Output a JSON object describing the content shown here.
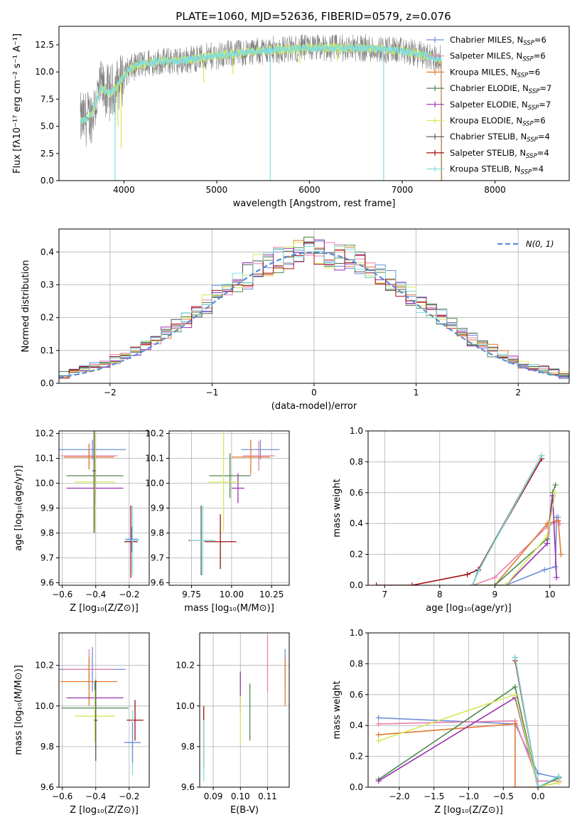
{
  "figure_title": "PLATE=1060, MJD=52636, FIBERID=0579, z=0.076",
  "colors": {
    "chabrier_miles": "#6f8fd8",
    "salpeter_miles": "#e87faf",
    "kroupa_miles": "#e07a2f",
    "chabrier_elodie": "#4f8a4f",
    "salpeter_elodie": "#9a30b0",
    "kroupa_elodie": "#d6e85a",
    "chabrier_stelib": "#555555",
    "salpeter_stelib": "#a01010",
    "kroupa_stelib": "#80dde0",
    "normal_curve": "#5b8ad6",
    "gray_spectrum": "#808080"
  },
  "chart_data": [
    {
      "id": "spectrum",
      "type": "line",
      "xlabel": "wavelength [Angstrom, rest frame]",
      "ylabel": "Flux [fλ10⁻¹⁷ erg cm⁻² s⁻¹ A⁻¹]",
      "xlim": [
        3300,
        8800
      ],
      "ylim": [
        0,
        14.2
      ],
      "xticks": [
        "4000",
        "5000",
        "6000",
        "7000",
        "8000"
      ],
      "yticks": [
        "0.0",
        "2.5",
        "5.0",
        "7.5",
        "10.0",
        "12.5"
      ],
      "grid": false,
      "legend_position": "top-right",
      "legend": [
        {
          "name": "Chabrier MILES, N",
          "sub": "SSP",
          "val": "=6",
          "color": "chabrier_miles"
        },
        {
          "name": "Salpeter MILES, N",
          "sub": "SSP",
          "val": "=6",
          "color": "salpeter_miles"
        },
        {
          "name": "Kroupa MILES, N",
          "sub": "SSP",
          "val": "=6",
          "color": "kroupa_miles"
        },
        {
          "name": "Chabrier ELODIE, N",
          "sub": "SSP",
          "val": "=7",
          "color": "chabrier_elodie"
        },
        {
          "name": "Salpeter ELODIE, N",
          "sub": "SSP",
          "val": "=7",
          "color": "salpeter_elodie"
        },
        {
          "name": "Kroupa ELODIE, N",
          "sub": "SSP",
          "val": "=6",
          "color": "kroupa_elodie"
        },
        {
          "name": "Chabrier STELIB, N",
          "sub": "SSP",
          "val": "=4",
          "color": "chabrier_stelib"
        },
        {
          "name": "Salpeter STELIB, N",
          "sub": "SSP",
          "val": "=4",
          "color": "salpeter_stelib"
        },
        {
          "name": "Kroupa STELIB, N",
          "sub": "SSP",
          "val": "=4",
          "color": "kroupa_stelib"
        }
      ],
      "continuum": [
        [
          3550,
          5.5
        ],
        [
          3650,
          6.0
        ],
        [
          3750,
          8.5
        ],
        [
          3850,
          8.0
        ],
        [
          3950,
          9.0
        ],
        [
          4050,
          10.2
        ],
        [
          4200,
          10.8
        ],
        [
          4400,
          11.0
        ],
        [
          4600,
          11.0
        ],
        [
          4800,
          11.3
        ],
        [
          5000,
          11.5
        ],
        [
          5200,
          11.7
        ],
        [
          5400,
          11.9
        ],
        [
          5600,
          12.0
        ],
        [
          5800,
          12.1
        ],
        [
          6000,
          12.2
        ],
        [
          6200,
          12.2
        ],
        [
          6400,
          12.2
        ],
        [
          6600,
          12.2
        ],
        [
          6800,
          12.1
        ],
        [
          7000,
          11.9
        ],
        [
          7200,
          11.6
        ],
        [
          7400,
          11.2
        ]
      ],
      "dips": [
        [
          3905,
          0.0
        ],
        [
          3935,
          5.0
        ],
        [
          3970,
          3.0
        ],
        [
          4860,
          9.0
        ],
        [
          5175,
          9.8
        ],
        [
          5577,
          0.0
        ],
        [
          5895,
          10.8
        ],
        [
          6300,
          11.0
        ],
        [
          6800,
          0.0
        ],
        [
          7420,
          0.0
        ]
      ]
    },
    {
      "id": "residuals",
      "type": "bar",
      "xlabel": "(data-model)/error",
      "ylabel": "Normed distribution",
      "xlim": [
        -2.5,
        2.5
      ],
      "ylim": [
        0,
        0.47
      ],
      "xticks": [
        "−2",
        "−1",
        "0",
        "1",
        "2"
      ],
      "yticks": [
        "0.0",
        "0.1",
        "0.2",
        "0.3",
        "0.4"
      ],
      "grid": true,
      "legend_position": "top-right",
      "legend": [
        {
          "name": "N(0, 1)",
          "color": "normal_curve"
        }
      ],
      "bin_width": 0.1,
      "series_count": 9
    },
    {
      "id": "age_vs_Z",
      "type": "scatter",
      "xlabel": "Z [log₁₀(Z/Z⊙)]",
      "ylabel": "age  [log₁₀(age/yr)]",
      "xlim": [
        -0.62,
        -0.08
      ],
      "ylim": [
        9.59,
        10.21
      ],
      "xticks": [
        "−0.6",
        "−0.4",
        "−0.2"
      ],
      "yticks": [
        "9.6",
        "9.7",
        "9.8",
        "9.9",
        "10.0",
        "10.1",
        "10.2"
      ],
      "grid": true,
      "points": [
        {
          "x": -0.42,
          "y": 10.135,
          "xe": 0.2,
          "ye": 0.04,
          "color": "chabrier_miles"
        },
        {
          "x": -0.44,
          "y": 10.11,
          "xe": 0.17,
          "ye": 0.05,
          "color": "salpeter_miles"
        },
        {
          "x": -0.44,
          "y": 10.105,
          "xe": 0.15,
          "ye": 0.05,
          "color": "kroupa_miles"
        },
        {
          "x": -0.405,
          "y": 10.03,
          "xe": 0.17,
          "ye": 0.08,
          "color": "chabrier_elodie"
        },
        {
          "x": -0.405,
          "y": 9.98,
          "xe": 0.17,
          "ye": 0.06,
          "color": "salpeter_elodie"
        },
        {
          "x": -0.405,
          "y": 10.005,
          "xe": 0.12,
          "ye": 0.2,
          "color": "kroupa_elodie"
        },
        {
          "x": -0.41,
          "y": 10.05,
          "xe": 0.01,
          "ye": 0.25,
          "color": "chabrier_stelib"
        },
        {
          "x": -0.19,
          "y": 9.765,
          "xe": 0.04,
          "ye": 0.145,
          "color": "salpeter_stelib"
        },
        {
          "x": -0.18,
          "y": 9.77,
          "xe": 0.04,
          "ye": 0.14,
          "color": "kroupa_stelib"
        },
        {
          "x": -0.185,
          "y": 9.775,
          "xe": 0.04,
          "ye": 0.05,
          "color": "chabrier_miles"
        }
      ]
    },
    {
      "id": "age_vs_mass",
      "type": "scatter",
      "xlabel": "mass [log₁₀(M/M⊙)]",
      "ylabel": "",
      "xlim": [
        9.61,
        10.36
      ],
      "ylim": [
        9.59,
        10.21
      ],
      "xticks": [
        "9.75",
        "10.00",
        "10.25"
      ],
      "yticks": [
        "9.6",
        "9.7",
        "9.8",
        "9.9",
        "10.0",
        "10.1",
        "10.2"
      ],
      "grid": true,
      "points": [
        {
          "x": 10.18,
          "y": 10.135,
          "xe": 0.12,
          "ye": 0.04,
          "color": "chabrier_miles"
        },
        {
          "x": 10.17,
          "y": 10.11,
          "xe": 0.1,
          "ye": 0.06,
          "color": "salpeter_miles"
        },
        {
          "x": 10.12,
          "y": 10.105,
          "xe": 0.12,
          "ye": 0.07,
          "color": "kroupa_miles"
        },
        {
          "x": 9.99,
          "y": 10.03,
          "xe": 0.13,
          "ye": 0.09,
          "color": "chabrier_elodie"
        },
        {
          "x": 10.04,
          "y": 9.98,
          "xe": 0.04,
          "ye": 0.06,
          "color": "salpeter_elodie"
        },
        {
          "x": 9.95,
          "y": 10.005,
          "xe": 0.1,
          "ye": 0.2,
          "color": "kroupa_elodie"
        },
        {
          "x": 9.81,
          "y": 9.77,
          "xe": 0.08,
          "ye": 0.14,
          "color": "chabrier_stelib"
        },
        {
          "x": 9.93,
          "y": 9.765,
          "xe": 0.1,
          "ye": 0.11,
          "color": "salpeter_stelib"
        },
        {
          "x": 9.82,
          "y": 9.77,
          "xe": 0.08,
          "ye": 0.14,
          "color": "kroupa_stelib"
        }
      ]
    },
    {
      "id": "massweight_vs_age",
      "type": "line",
      "xlabel": "age  [log₁₀(age/yr)]",
      "ylabel": "mass weight",
      "xlim": [
        6.7,
        10.35
      ],
      "ylim": [
        0,
        1.0
      ],
      "xticks": [
        "7",
        "8",
        "9",
        "10"
      ],
      "yticks": [
        "0.0",
        "0.2",
        "0.4",
        "0.6",
        "0.8",
        "1.0"
      ],
      "grid": true,
      "series": [
        {
          "color": "chabrier_miles",
          "points": [
            [
              8.6,
              0.0
            ],
            [
              9.2,
              0.0
            ],
            [
              9.9,
              0.1
            ],
            [
              10.1,
              0.12
            ],
            [
              10.12,
              0.44
            ],
            [
              10.15,
              0.44
            ]
          ]
        },
        {
          "color": "salpeter_miles",
          "points": [
            [
              8.6,
              0.0
            ],
            [
              9.0,
              0.05
            ],
            [
              9.95,
              0.38
            ],
            [
              10.15,
              0.42
            ],
            [
              10.18,
              0.4
            ]
          ]
        },
        {
          "color": "kroupa_miles",
          "points": [
            [
              8.6,
              0.0
            ],
            [
              9.0,
              0.0
            ],
            [
              9.95,
              0.4
            ],
            [
              10.15,
              0.42
            ],
            [
              10.2,
              0.2
            ]
          ]
        },
        {
          "color": "chabrier_elodie",
          "points": [
            [
              8.6,
              0.0
            ],
            [
              9.0,
              0.0
            ],
            [
              9.95,
              0.3
            ],
            [
              10.05,
              0.6
            ],
            [
              10.1,
              0.65
            ]
          ]
        },
        {
          "color": "salpeter_elodie",
          "points": [
            [
              8.7,
              0.0
            ],
            [
              9.2,
              0.0
            ],
            [
              9.95,
              0.27
            ],
            [
              10.05,
              0.58
            ],
            [
              10.12,
              0.05
            ]
          ]
        },
        {
          "color": "kroupa_elodie",
          "points": [
            [
              8.7,
              0.0
            ],
            [
              9.2,
              0.0
            ],
            [
              9.95,
              0.32
            ],
            [
              10.1,
              0.6
            ]
          ]
        },
        {
          "color": "chabrier_stelib",
          "points": [
            [
              8.6,
              0.0
            ],
            [
              8.7,
              0.1
            ],
            [
              9.85,
              0.84
            ]
          ]
        },
        {
          "color": "salpeter_stelib",
          "points": [
            [
              6.85,
              0.0
            ],
            [
              7.5,
              0.0
            ],
            [
              8.5,
              0.07
            ],
            [
              8.7,
              0.1
            ],
            [
              9.85,
              0.82
            ]
          ]
        },
        {
          "color": "kroupa_stelib",
          "points": [
            [
              8.6,
              0.0
            ],
            [
              8.7,
              0.09
            ],
            [
              9.85,
              0.84
            ]
          ]
        }
      ]
    },
    {
      "id": "mass_vs_Z",
      "type": "scatter",
      "xlabel": "Z [log₁₀(Z/Z⊙)]",
      "ylabel": "mass [log₁₀(M/M⊙)]",
      "xlim": [
        -0.62,
        -0.08
      ],
      "ylim": [
        9.6,
        10.36
      ],
      "xticks": [
        "−0.6",
        "−0.4",
        "−0.2"
      ],
      "yticks": [
        "9.6",
        "9.8",
        "10.0",
        "10.2"
      ],
      "grid": true,
      "points": [
        {
          "x": -0.42,
          "y": 10.18,
          "xe": 0.2,
          "ye": 0.11,
          "color": "chabrier_miles"
        },
        {
          "x": -0.44,
          "y": 10.18,
          "xe": 0.15,
          "ye": 0.1,
          "color": "salpeter_miles"
        },
        {
          "x": -0.44,
          "y": 10.12,
          "xe": 0.17,
          "ye": 0.12,
          "color": "kroupa_miles"
        },
        {
          "x": -0.405,
          "y": 9.99,
          "xe": 0.2,
          "ye": 0.13,
          "color": "chabrier_elodie"
        },
        {
          "x": -0.405,
          "y": 10.04,
          "xe": 0.17,
          "ye": 0.04,
          "color": "salpeter_elodie"
        },
        {
          "x": -0.405,
          "y": 9.95,
          "xe": 0.12,
          "ye": 0.13,
          "color": "kroupa_elodie"
        },
        {
          "x": -0.4,
          "y": 9.93,
          "xe": 0.01,
          "ye": 0.2,
          "color": "chabrier_stelib"
        },
        {
          "x": -0.165,
          "y": 9.93,
          "xe": 0.05,
          "ye": 0.1,
          "color": "salpeter_stelib"
        },
        {
          "x": -0.18,
          "y": 9.82,
          "xe": 0.04,
          "ye": 0.16,
          "color": "kroupa_stelib"
        },
        {
          "x": -0.18,
          "y": 9.82,
          "xe": 0.05,
          "ye": 0.1,
          "color": "chabrier_miles"
        }
      ]
    },
    {
      "id": "mass_vs_EBV",
      "type": "scatter",
      "xlabel": "E(B-V)",
      "ylabel": "",
      "xlim": [
        0.085,
        0.118
      ],
      "ylim": [
        9.6,
        10.36
      ],
      "xticks": [
        "0.09",
        "0.10",
        "0.11"
      ],
      "yticks": [
        "9.6",
        "9.8",
        "10.0",
        "10.2"
      ],
      "grid": true,
      "points": [
        {
          "x": 0.1165,
          "y": 10.18,
          "xe": 0,
          "ye": 0.1,
          "color": "chabrier_miles"
        },
        {
          "x": 0.11,
          "y": 10.21,
          "xe": 0,
          "ye": 0.14,
          "color": "salpeter_miles"
        },
        {
          "x": 0.1165,
          "y": 10.12,
          "xe": 0,
          "ye": 0.12,
          "color": "kroupa_miles"
        },
        {
          "x": 0.1035,
          "y": 9.97,
          "xe": 0,
          "ye": 0.14,
          "color": "chabrier_elodie"
        },
        {
          "x": 0.1,
          "y": 10.07,
          "xe": 0,
          "ye": 0.1,
          "color": "salpeter_elodie"
        },
        {
          "x": 0.1,
          "y": 9.93,
          "xe": 0,
          "ye": 0.12,
          "color": "kroupa_elodie"
        },
        {
          "x": 0.0865,
          "y": 9.85,
          "xe": 0,
          "ye": 0.15,
          "color": "salpeter_stelib"
        },
        {
          "x": 0.0865,
          "y": 9.78,
          "xe": 0,
          "ye": 0.15,
          "color": "kroupa_stelib"
        }
      ]
    },
    {
      "id": "massweight_vs_Z",
      "type": "line",
      "xlabel": "Z [log₁₀(Z/Z⊙)]",
      "ylabel": "mass weight",
      "xlim": [
        -2.45,
        0.45
      ],
      "ylim": [
        0,
        1.0
      ],
      "xticks": [
        "−2.0",
        "−1.5",
        "−1.0",
        "−0.5",
        "0.0"
      ],
      "yticks": [
        "0.0",
        "0.2",
        "0.4",
        "0.6",
        "0.8",
        "1.0"
      ],
      "grid": true,
      "series": [
        {
          "color": "chabrier_miles",
          "points": [
            [
              -2.3,
              0.45
            ],
            [
              -0.33,
              0.41
            ],
            [
              0.0,
              0.09
            ],
            [
              0.3,
              0.06
            ]
          ]
        },
        {
          "color": "salpeter_miles",
          "points": [
            [
              -2.3,
              0.41
            ],
            [
              -0.33,
              0.43
            ],
            [
              0.0,
              0.04
            ],
            [
              0.3,
              0.04
            ]
          ]
        },
        {
          "color": "kroupa_miles",
          "points": [
            [
              -2.3,
              0.34
            ],
            [
              -0.33,
              0.41
            ],
            [
              -0.33,
              0.0
            ],
            [
              0.0,
              0.0
            ],
            [
              0.3,
              0.03
            ]
          ]
        },
        {
          "color": "chabrier_elodie",
          "points": [
            [
              -2.3,
              0.05
            ],
            [
              -0.33,
              0.65
            ],
            [
              0.0,
              0.0
            ],
            [
              0.3,
              0.06
            ]
          ]
        },
        {
          "color": "salpeter_elodie",
          "points": [
            [
              -2.3,
              0.04
            ],
            [
              -0.33,
              0.58
            ],
            [
              0.0,
              0.0
            ]
          ]
        },
        {
          "color": "kroupa_elodie",
          "points": [
            [
              -2.3,
              0.3
            ],
            [
              -0.33,
              0.6
            ],
            [
              0.0,
              0.0
            ],
            [
              0.3,
              0.03
            ]
          ]
        },
        {
          "color": "chabrier_stelib",
          "points": [
            [
              -0.33,
              0.84
            ],
            [
              0.0,
              0.0
            ],
            [
              0.3,
              0.07
            ]
          ]
        },
        {
          "color": "salpeter_stelib",
          "points": [
            [
              -0.33,
              0.82
            ],
            [
              0.0,
              0.0
            ]
          ]
        },
        {
          "color": "kroupa_stelib",
          "points": [
            [
              -0.33,
              0.84
            ],
            [
              0.0,
              0.0
            ],
            [
              0.3,
              0.07
            ]
          ]
        }
      ]
    }
  ]
}
